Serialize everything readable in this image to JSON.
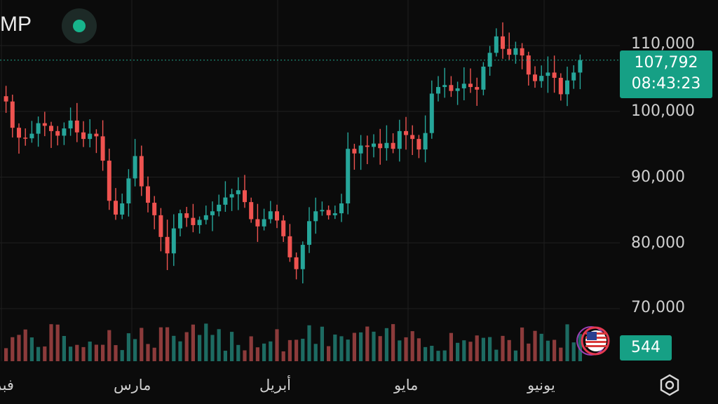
{
  "header": {
    "symbol": "MP"
  },
  "price_tag": {
    "price": "107,792",
    "countdown": "08:43:23"
  },
  "volume_tag": "544",
  "icons": {
    "live": "live-status-dot-icon",
    "flag": "us-flag-icon",
    "settings": "settings-gear-icon"
  },
  "colors": {
    "up": "#26a69a",
    "down": "#ef5350",
    "accent": "#16a085",
    "background": "#0b0b0b"
  },
  "chart_data": {
    "type": "candlestick",
    "y_ticks": [
      "110,000",
      "100,000",
      "90,000",
      "80,000",
      "70,000"
    ],
    "y_tick_values": [
      110000,
      100000,
      90000,
      80000,
      70000
    ],
    "x_ticks": [
      "فبر",
      "مارس",
      "أبريل",
      "مايو",
      "يونيو"
    ],
    "current_price": 107792,
    "ylim": [
      67000,
      114000
    ],
    "grid": true,
    "closes": [
      101500,
      97500,
      96000,
      95900,
      96600,
      98200,
      97800,
      97000,
      96300,
      97400,
      98600,
      96800,
      95800,
      96600,
      96200,
      92500,
      86400,
      84300,
      86000,
      89800,
      93200,
      88600,
      86100,
      84200,
      80900,
      78400,
      82200,
      84500,
      83800,
      82700,
      83500,
      84200,
      84800,
      85800,
      86900,
      87400,
      88000,
      86200,
      83600,
      82500,
      83600,
      84800,
      83400,
      81000,
      77800,
      76000,
      79700,
      83300,
      84800,
      85000,
      84200,
      84500,
      86000,
      94300,
      93600,
      94800,
      94600,
      95100,
      94400,
      95200,
      94300,
      97000,
      96400,
      95800,
      94200,
      96700,
      102700,
      103700,
      104000,
      103100,
      103500,
      104200,
      103700,
      103300,
      106800,
      108900,
      111400,
      109500,
      108600,
      109600,
      108500,
      105600,
      104600,
      105400,
      105900,
      105100,
      102600,
      104700,
      105900,
      107792
    ],
    "volume_last": 544
  }
}
